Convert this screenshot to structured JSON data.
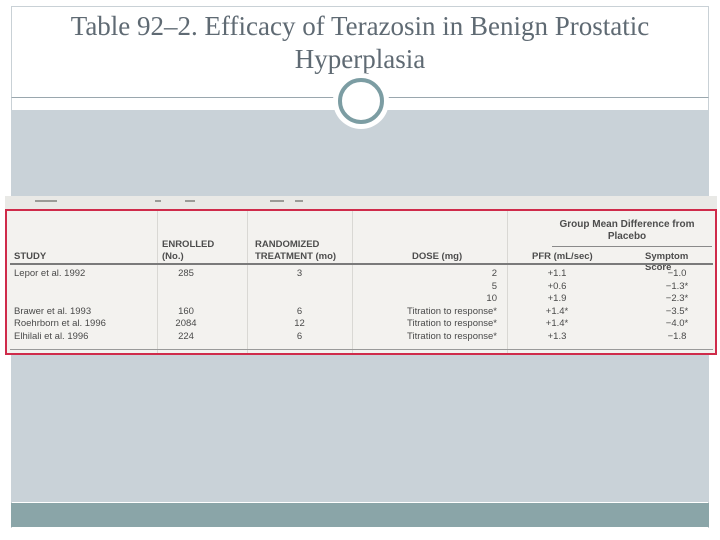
{
  "slide": {
    "title_lines": [
      "Table 92–2. Efficacy of Terazosin in Benign Prostatic",
      "Hyperplasia"
    ]
  },
  "table": {
    "group_header": "Group Mean Difference from Placebo",
    "columns": {
      "study": "STUDY",
      "enrolled_line1": "ENROLLED",
      "enrolled_line2": "(No.)",
      "treatment_line1": "RANDOMIZED",
      "treatment_line2": "TREATMENT (mo)",
      "dose": "DOSE (mg)",
      "pfr": "PFR (mL/sec)",
      "symptom": "Symptom Score"
    },
    "rows": [
      {
        "study": "Lepor et al. 1992",
        "enrolled": "285",
        "treatment": "3",
        "dose": "2",
        "pfr": "+1.1",
        "symptom": "−1.0"
      },
      {
        "study": "",
        "enrolled": "",
        "treatment": "",
        "dose": "5",
        "pfr": "+0.6",
        "symptom": "−1.3*"
      },
      {
        "study": "",
        "enrolled": "",
        "treatment": "",
        "dose": "10",
        "pfr": "+1.9",
        "symptom": "−2.3*"
      },
      {
        "study": "Brawer et al. 1993",
        "enrolled": "160",
        "treatment": "6",
        "dose": "Titration to response*",
        "pfr": "+1.4*",
        "symptom": "−3.5*"
      },
      {
        "study": "Roehrborn et al. 1996",
        "enrolled": "2084",
        "treatment": "12",
        "dose": "Titration to response*",
        "pfr": "+1.4*",
        "symptom": "−4.0*"
      },
      {
        "study": "Elhilali et al. 1996",
        "enrolled": "224",
        "treatment": "6",
        "dose": "Titration to response*",
        "pfr": "+1.3",
        "symptom": "−1.8"
      }
    ]
  },
  "colors": {
    "title_text": "#5f6a73",
    "panel": "#c9d2d8",
    "footer_bar": "#8aa5a8",
    "circle_ring": "#7c9da3",
    "table_border": "#cf2b4a"
  }
}
